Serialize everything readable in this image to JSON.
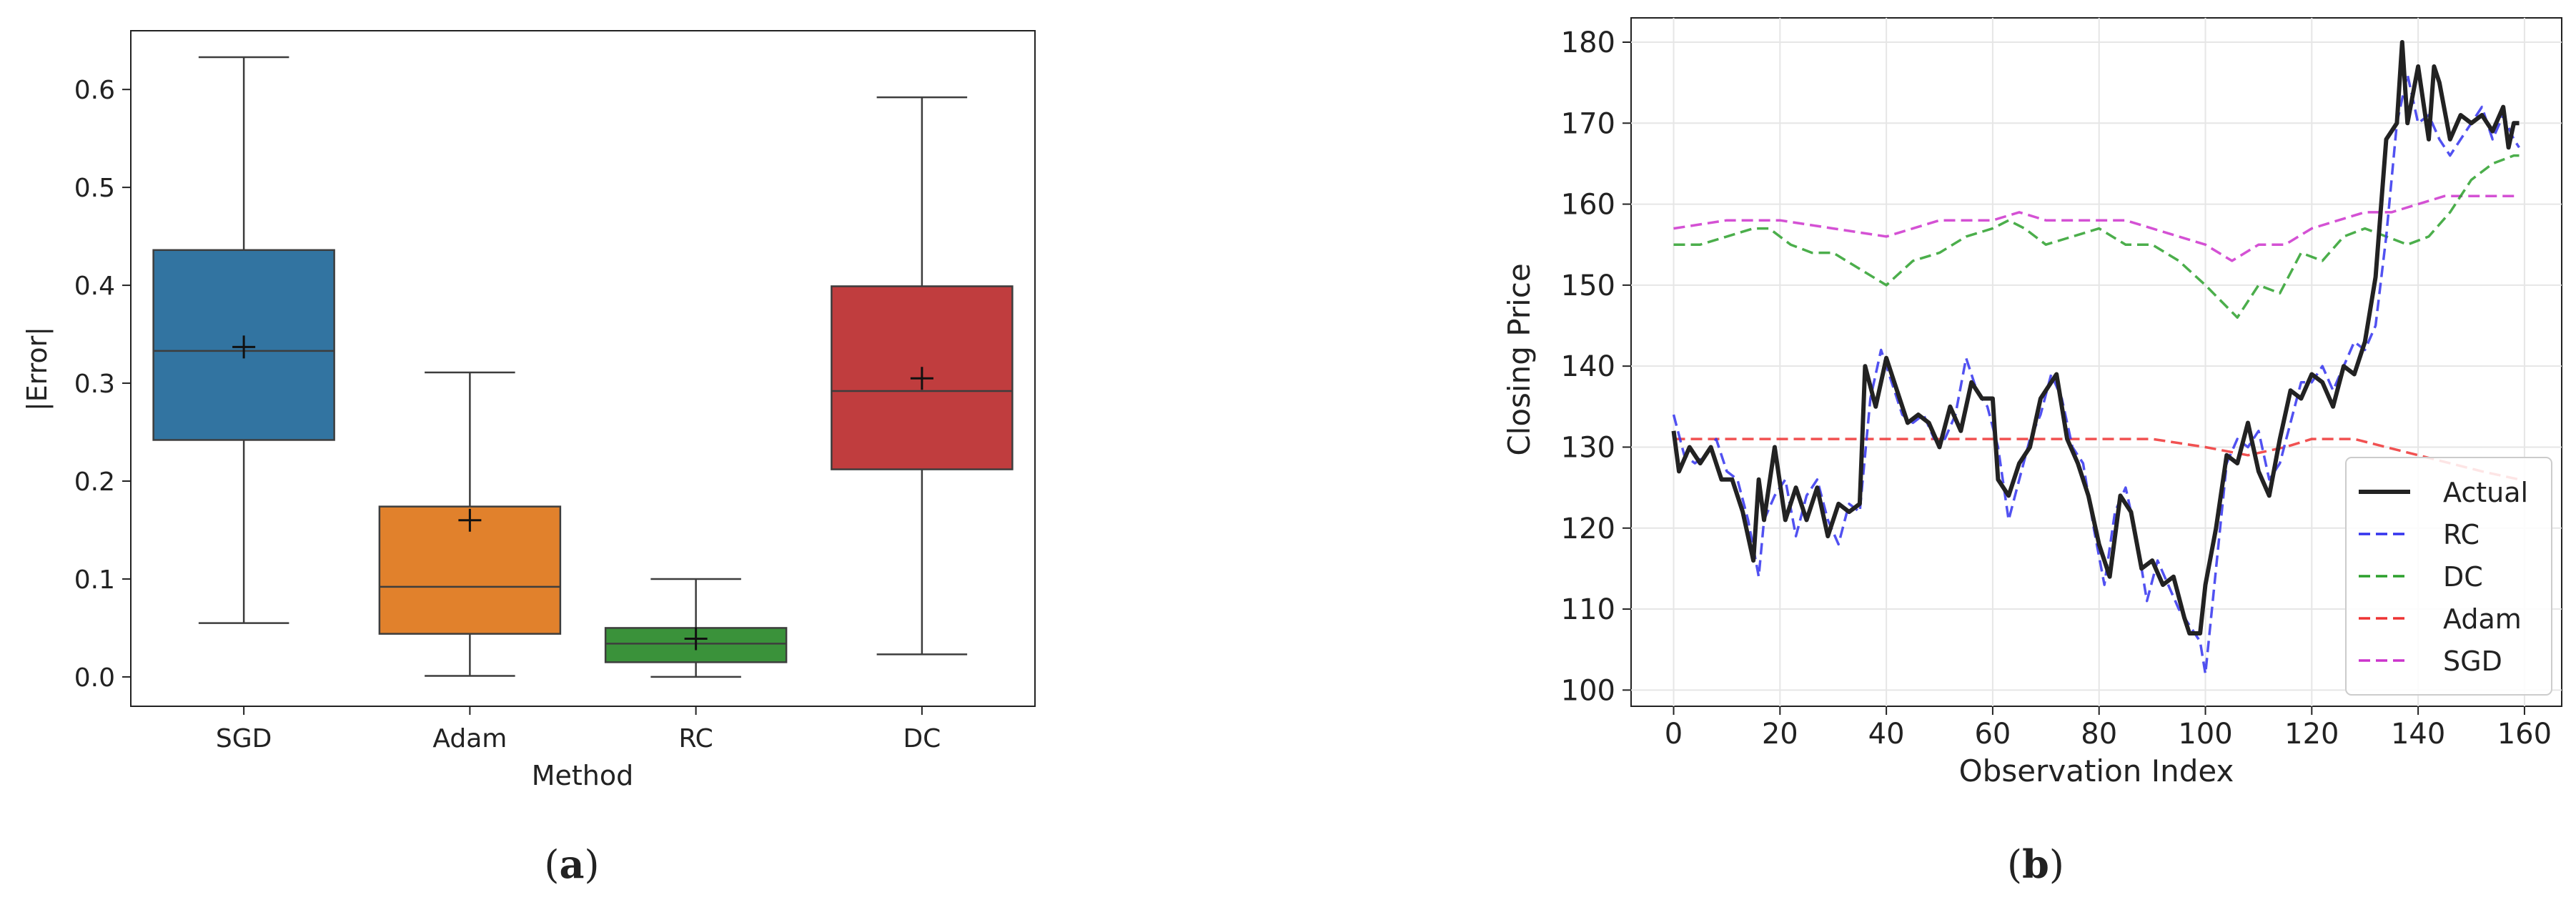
{
  "panel_labels": {
    "a_open": "(",
    "a_letter": "a",
    "a_close": ")",
    "b_open": "(",
    "b_letter": "b",
    "b_close": ")"
  },
  "colors": {
    "SGD": "#3274a1",
    "Adam": "#e1812c",
    "RC": "#3a923a",
    "DC": "#c03d3e",
    "Actual": "#222222",
    "RC_line": "#3333ee",
    "DC_line": "#2ca02c",
    "Adam_line": "#ee3333",
    "SGD_line": "#cc33cc"
  },
  "chart_data": [
    {
      "type": "box",
      "xlabel": "Method",
      "ylabel": "|Error|",
      "ylim": [
        -0.03,
        0.66
      ],
      "yticks": [
        "0.0",
        "0.1",
        "0.2",
        "0.3",
        "0.4",
        "0.5",
        "0.6"
      ],
      "grid": false,
      "categories": [
        "SGD",
        "Adam",
        "RC",
        "DC"
      ],
      "boxes": [
        {
          "name": "SGD",
          "whisker_low": 0.055,
          "q1": 0.242,
          "median": 0.333,
          "q3": 0.436,
          "whisker_high": 0.633,
          "mean": 0.337
        },
        {
          "name": "Adam",
          "whisker_low": 0.001,
          "q1": 0.044,
          "median": 0.092,
          "q3": 0.174,
          "whisker_high": 0.311,
          "mean": 0.16
        },
        {
          "name": "RC",
          "whisker_low": 0.0,
          "q1": 0.015,
          "median": 0.034,
          "q3": 0.05,
          "whisker_high": 0.1,
          "mean": 0.039
        },
        {
          "name": "DC",
          "whisker_low": 0.023,
          "q1": 0.212,
          "median": 0.292,
          "q3": 0.399,
          "whisker_high": 0.592,
          "mean": 0.305
        }
      ]
    },
    {
      "type": "line",
      "xlabel": "Observation Index",
      "ylabel": "Closing Price",
      "xlim": [
        -8,
        167
      ],
      "ylim": [
        98,
        183
      ],
      "xticks": [
        "0",
        "20",
        "40",
        "60",
        "80",
        "100",
        "120",
        "140",
        "160"
      ],
      "yticks": [
        "100",
        "110",
        "120",
        "130",
        "140",
        "150",
        "160",
        "170",
        "180"
      ],
      "grid": true,
      "legend_position": "lower-right",
      "series": [
        {
          "name": "Actual",
          "style": "solid",
          "keypoints": [
            [
              0,
              132
            ],
            [
              1,
              127
            ],
            [
              3,
              130
            ],
            [
              5,
              128
            ],
            [
              7,
              130
            ],
            [
              9,
              126
            ],
            [
              11,
              126
            ],
            [
              13,
              122
            ],
            [
              15,
              116
            ],
            [
              16,
              126
            ],
            [
              17,
              121
            ],
            [
              19,
              130
            ],
            [
              21,
              121
            ],
            [
              23,
              125
            ],
            [
              25,
              121
            ],
            [
              27,
              125
            ],
            [
              29,
              119
            ],
            [
              31,
              123
            ],
            [
              33,
              122
            ],
            [
              35,
              123
            ],
            [
              36,
              140
            ],
            [
              38,
              135
            ],
            [
              40,
              141
            ],
            [
              42,
              137
            ],
            [
              44,
              133
            ],
            [
              46,
              134
            ],
            [
              48,
              133
            ],
            [
              50,
              130
            ],
            [
              52,
              135
            ],
            [
              54,
              132
            ],
            [
              56,
              138
            ],
            [
              58,
              136
            ],
            [
              60,
              136
            ],
            [
              61,
              126
            ],
            [
              63,
              124
            ],
            [
              65,
              128
            ],
            [
              67,
              130
            ],
            [
              69,
              136
            ],
            [
              72,
              139
            ],
            [
              74,
              131
            ],
            [
              76,
              128
            ],
            [
              78,
              124
            ],
            [
              80,
              118
            ],
            [
              82,
              114
            ],
            [
              84,
              124
            ],
            [
              86,
              122
            ],
            [
              88,
              115
            ],
            [
              90,
              116
            ],
            [
              92,
              113
            ],
            [
              94,
              114
            ],
            [
              96,
              109
            ],
            [
              97,
              107
            ],
            [
              99,
              107
            ],
            [
              100,
              113
            ],
            [
              102,
              120
            ],
            [
              104,
              129
            ],
            [
              106,
              128
            ],
            [
              108,
              133
            ],
            [
              110,
              127
            ],
            [
              112,
              124
            ],
            [
              114,
              131
            ],
            [
              116,
              137
            ],
            [
              118,
              136
            ],
            [
              120,
              139
            ],
            [
              122,
              138
            ],
            [
              124,
              135
            ],
            [
              126,
              140
            ],
            [
              128,
              139
            ],
            [
              130,
              143
            ],
            [
              132,
              151
            ],
            [
              134,
              168
            ],
            [
              136,
              170
            ],
            [
              137,
              180
            ],
            [
              138,
              170
            ],
            [
              140,
              177
            ],
            [
              142,
              168
            ],
            [
              143,
              177
            ],
            [
              144,
              175
            ],
            [
              146,
              168
            ],
            [
              148,
              171
            ],
            [
              150,
              170
            ],
            [
              152,
              171
            ],
            [
              154,
              169
            ],
            [
              156,
              172
            ],
            [
              157,
              167
            ],
            [
              158,
              170
            ],
            [
              159,
              170
            ]
          ]
        },
        {
          "name": "RC",
          "style": "dashed",
          "keypoints": [
            [
              0,
              134
            ],
            [
              2,
              129
            ],
            [
              4,
              128
            ],
            [
              6,
              129
            ],
            [
              8,
              131
            ],
            [
              10,
              127
            ],
            [
              12,
              126
            ],
            [
              14,
              121
            ],
            [
              16,
              114
            ],
            [
              17,
              121
            ],
            [
              19,
              124
            ],
            [
              21,
              126
            ],
            [
              23,
              119
            ],
            [
              25,
              124
            ],
            [
              27,
              126
            ],
            [
              29,
              121
            ],
            [
              31,
              118
            ],
            [
              33,
              123
            ],
            [
              35,
              122
            ],
            [
              37,
              136
            ],
            [
              39,
              142
            ],
            [
              41,
              138
            ],
            [
              43,
              134
            ],
            [
              45,
              133
            ],
            [
              47,
              134
            ],
            [
              49,
              131
            ],
            [
              51,
              131
            ],
            [
              53,
              134
            ],
            [
              55,
              141
            ],
            [
              57,
              137
            ],
            [
              59,
              135
            ],
            [
              61,
              130
            ],
            [
              63,
              121
            ],
            [
              65,
              126
            ],
            [
              67,
              131
            ],
            [
              69,
              134
            ],
            [
              71,
              139
            ],
            [
              73,
              136
            ],
            [
              75,
              130
            ],
            [
              77,
              128
            ],
            [
              79,
              120
            ],
            [
              81,
              113
            ],
            [
              83,
              122
            ],
            [
              85,
              125
            ],
            [
              87,
              119
            ],
            [
              89,
              111
            ],
            [
              91,
              116
            ],
            [
              93,
              113
            ],
            [
              95,
              110
            ],
            [
              97,
              108
            ],
            [
              99,
              106
            ],
            [
              100,
              102
            ],
            [
              102,
              115
            ],
            [
              104,
              128
            ],
            [
              106,
              131
            ],
            [
              108,
              130
            ],
            [
              110,
              132
            ],
            [
              112,
              126
            ],
            [
              114,
              128
            ],
            [
              116,
              133
            ],
            [
              118,
              138
            ],
            [
              120,
              138
            ],
            [
              122,
              140
            ],
            [
              124,
              137
            ],
            [
              126,
              140
            ],
            [
              128,
              143
            ],
            [
              130,
              142
            ],
            [
              132,
              145
            ],
            [
              134,
              156
            ],
            [
              136,
              170
            ],
            [
              138,
              176
            ],
            [
              140,
              170
            ],
            [
              142,
              171
            ],
            [
              144,
              168
            ],
            [
              146,
              166
            ],
            [
              148,
              168
            ],
            [
              150,
              170
            ],
            [
              152,
              172
            ],
            [
              154,
              168
            ],
            [
              156,
              171
            ],
            [
              158,
              168
            ],
            [
              159,
              167
            ]
          ]
        },
        {
          "name": "DC",
          "style": "dashed",
          "keypoints": [
            [
              0,
              155
            ],
            [
              5,
              155
            ],
            [
              10,
              156
            ],
            [
              15,
              157
            ],
            [
              18,
              157
            ],
            [
              22,
              155
            ],
            [
              26,
              154
            ],
            [
              30,
              154
            ],
            [
              35,
              152
            ],
            [
              40,
              150
            ],
            [
              45,
              153
            ],
            [
              50,
              154
            ],
            [
              55,
              156
            ],
            [
              60,
              157
            ],
            [
              63,
              158
            ],
            [
              66,
              157
            ],
            [
              70,
              155
            ],
            [
              75,
              156
            ],
            [
              80,
              157
            ],
            [
              85,
              155
            ],
            [
              90,
              155
            ],
            [
              95,
              153
            ],
            [
              100,
              150
            ],
            [
              103,
              148
            ],
            [
              106,
              146
            ],
            [
              110,
              150
            ],
            [
              114,
              149
            ],
            [
              118,
              154
            ],
            [
              122,
              153
            ],
            [
              126,
              156
            ],
            [
              130,
              157
            ],
            [
              134,
              156
            ],
            [
              138,
              155
            ],
            [
              142,
              156
            ],
            [
              146,
              159
            ],
            [
              150,
              163
            ],
            [
              154,
              165
            ],
            [
              158,
              166
            ],
            [
              159,
              166
            ]
          ]
        },
        {
          "name": "Adam",
          "style": "dashed",
          "keypoints": [
            [
              0,
              131
            ],
            [
              10,
              131
            ],
            [
              20,
              131
            ],
            [
              30,
              131
            ],
            [
              40,
              131
            ],
            [
              50,
              131
            ],
            [
              60,
              131
            ],
            [
              70,
              131
            ],
            [
              80,
              131
            ],
            [
              90,
              131
            ],
            [
              100,
              130
            ],
            [
              108,
              129
            ],
            [
              115,
              130
            ],
            [
              120,
              131
            ],
            [
              128,
              131
            ],
            [
              134,
              130
            ],
            [
              140,
              129
            ],
            [
              146,
              128
            ],
            [
              152,
              127
            ],
            [
              159,
              126
            ]
          ]
        },
        {
          "name": "SGD",
          "style": "dashed",
          "keypoints": [
            [
              0,
              157
            ],
            [
              10,
              158
            ],
            [
              20,
              158
            ],
            [
              30,
              157
            ],
            [
              40,
              156
            ],
            [
              45,
              157
            ],
            [
              50,
              158
            ],
            [
              55,
              158
            ],
            [
              60,
              158
            ],
            [
              65,
              159
            ],
            [
              70,
              158
            ],
            [
              75,
              158
            ],
            [
              80,
              158
            ],
            [
              85,
              158
            ],
            [
              90,
              157
            ],
            [
              95,
              156
            ],
            [
              100,
              155
            ],
            [
              105,
              153
            ],
            [
              110,
              155
            ],
            [
              115,
              155
            ],
            [
              120,
              157
            ],
            [
              125,
              158
            ],
            [
              130,
              159
            ],
            [
              135,
              159
            ],
            [
              140,
              160
            ],
            [
              145,
              161
            ],
            [
              150,
              161
            ],
            [
              155,
              161
            ],
            [
              159,
              161
            ]
          ]
        }
      ]
    }
  ]
}
